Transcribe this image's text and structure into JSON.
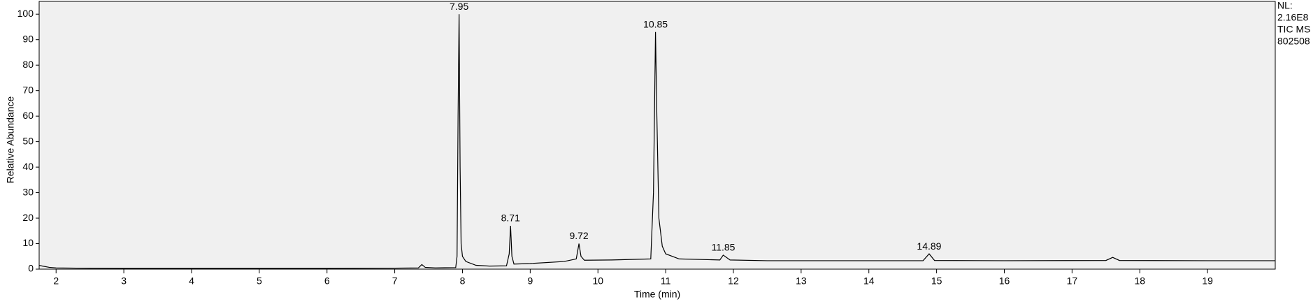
{
  "chart_data": {
    "type": "line",
    "x_label": "Time (min)",
    "y_label": "Relative Abundance",
    "info": [
      "NL:",
      "2.16E8",
      "TIC  MS",
      "802508"
    ],
    "color": "#000000",
    "x": [
      1.75,
      1.8,
      1.9,
      2.0,
      2.3,
      3.0,
      4.0,
      5.0,
      6.0,
      7.0,
      7.35,
      7.4,
      7.45,
      7.6,
      7.9,
      7.92,
      7.935,
      7.95,
      7.965,
      7.98,
      8.0,
      8.05,
      8.2,
      8.4,
      8.65,
      8.69,
      8.71,
      8.73,
      8.76,
      9.0,
      9.5,
      9.68,
      9.72,
      9.75,
      9.8,
      10.2,
      10.78,
      10.82,
      10.85,
      10.87,
      10.9,
      10.95,
      11.0,
      11.2,
      11.8,
      11.85,
      11.95,
      12.5,
      14.8,
      14.89,
      14.97,
      16.0,
      17.5,
      17.6,
      17.7,
      19.0,
      20.0
    ],
    "values": [
      1.5,
      1.2,
      0.7,
      0.5,
      0.4,
      0.3,
      0.3,
      0.3,
      0.3,
      0.4,
      0.5,
      1.8,
      0.7,
      0.5,
      0.6,
      5,
      60,
      100,
      40,
      10,
      5,
      3,
      1.5,
      1.2,
      1.3,
      6,
      17,
      5,
      2,
      2.2,
      3,
      4,
      10,
      5,
      3.5,
      3.6,
      4,
      30,
      93,
      60,
      20,
      9,
      6,
      4,
      3.6,
      5.5,
      3.6,
      3.3,
      3.3,
      6,
      3.4,
      3.3,
      3.4,
      4.6,
      3.4,
      3.3,
      3.3
    ],
    "peak_labels": [
      7.95,
      8.71,
      9.72,
      10.85,
      11.85,
      14.89
    ],
    "xlim": [
      1.75,
      20.0
    ],
    "ylim": [
      0,
      105
    ],
    "xticks": [
      2,
      3,
      4,
      5,
      6,
      7,
      8,
      9,
      10,
      11,
      12,
      13,
      14,
      15,
      16,
      17,
      18,
      19
    ],
    "yticks": [
      0,
      10,
      20,
      30,
      40,
      50,
      60,
      70,
      80,
      90,
      100
    ]
  }
}
